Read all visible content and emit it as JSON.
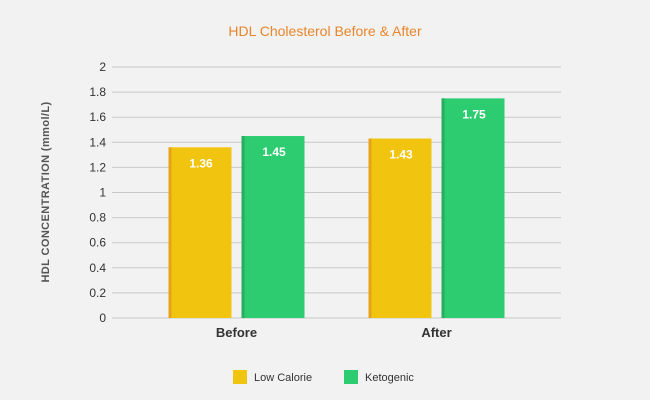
{
  "chart_data": {
    "type": "bar",
    "title": "HDL Cholesterol Before & After",
    "xlabel": "",
    "ylabel": "HDL CONCENTRATION (mmol/L)",
    "categories": [
      "Before",
      "After"
    ],
    "series": [
      {
        "name": "Low Calorie",
        "values": [
          1.36,
          1.43
        ],
        "color": "#f1c40f",
        "edge_color": "#e8a21a",
        "labels": [
          "1.36",
          "1.43"
        ]
      },
      {
        "name": "Ketogenic",
        "values": [
          1.45,
          1.75
        ],
        "color": "#2ecc71",
        "edge_color": "#27ae60",
        "labels": [
          "1.45",
          "1.75"
        ]
      }
    ],
    "ylim": [
      0,
      2
    ],
    "yticks": [
      "0",
      "0.2",
      "0.4",
      "0.6",
      "0.8",
      "1",
      "1.2",
      "1.4",
      "1.6",
      "1.8",
      "2"
    ],
    "grid": true,
    "legend_position": "bottom-center"
  }
}
